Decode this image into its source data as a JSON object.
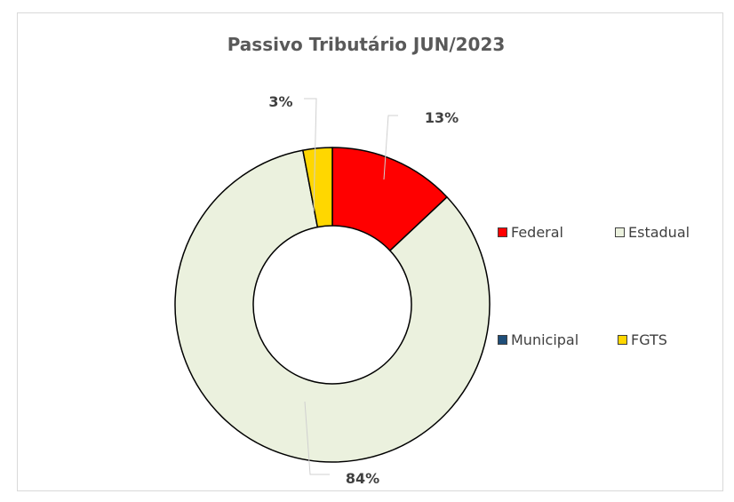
{
  "chart_data": {
    "type": "pie",
    "subtype": "donut",
    "title": "Passivo Tributário JUN/2023",
    "categories": [
      "Federal",
      "Estadual",
      "Municipal",
      "FGTS"
    ],
    "values": [
      13,
      84,
      0,
      3
    ],
    "value_labels": [
      "13%",
      "84%",
      "",
      "3%"
    ],
    "colors": [
      "#ff0000",
      "#ebf1de",
      "#1f4e79",
      "#ffd700"
    ],
    "legend_position": "right"
  }
}
